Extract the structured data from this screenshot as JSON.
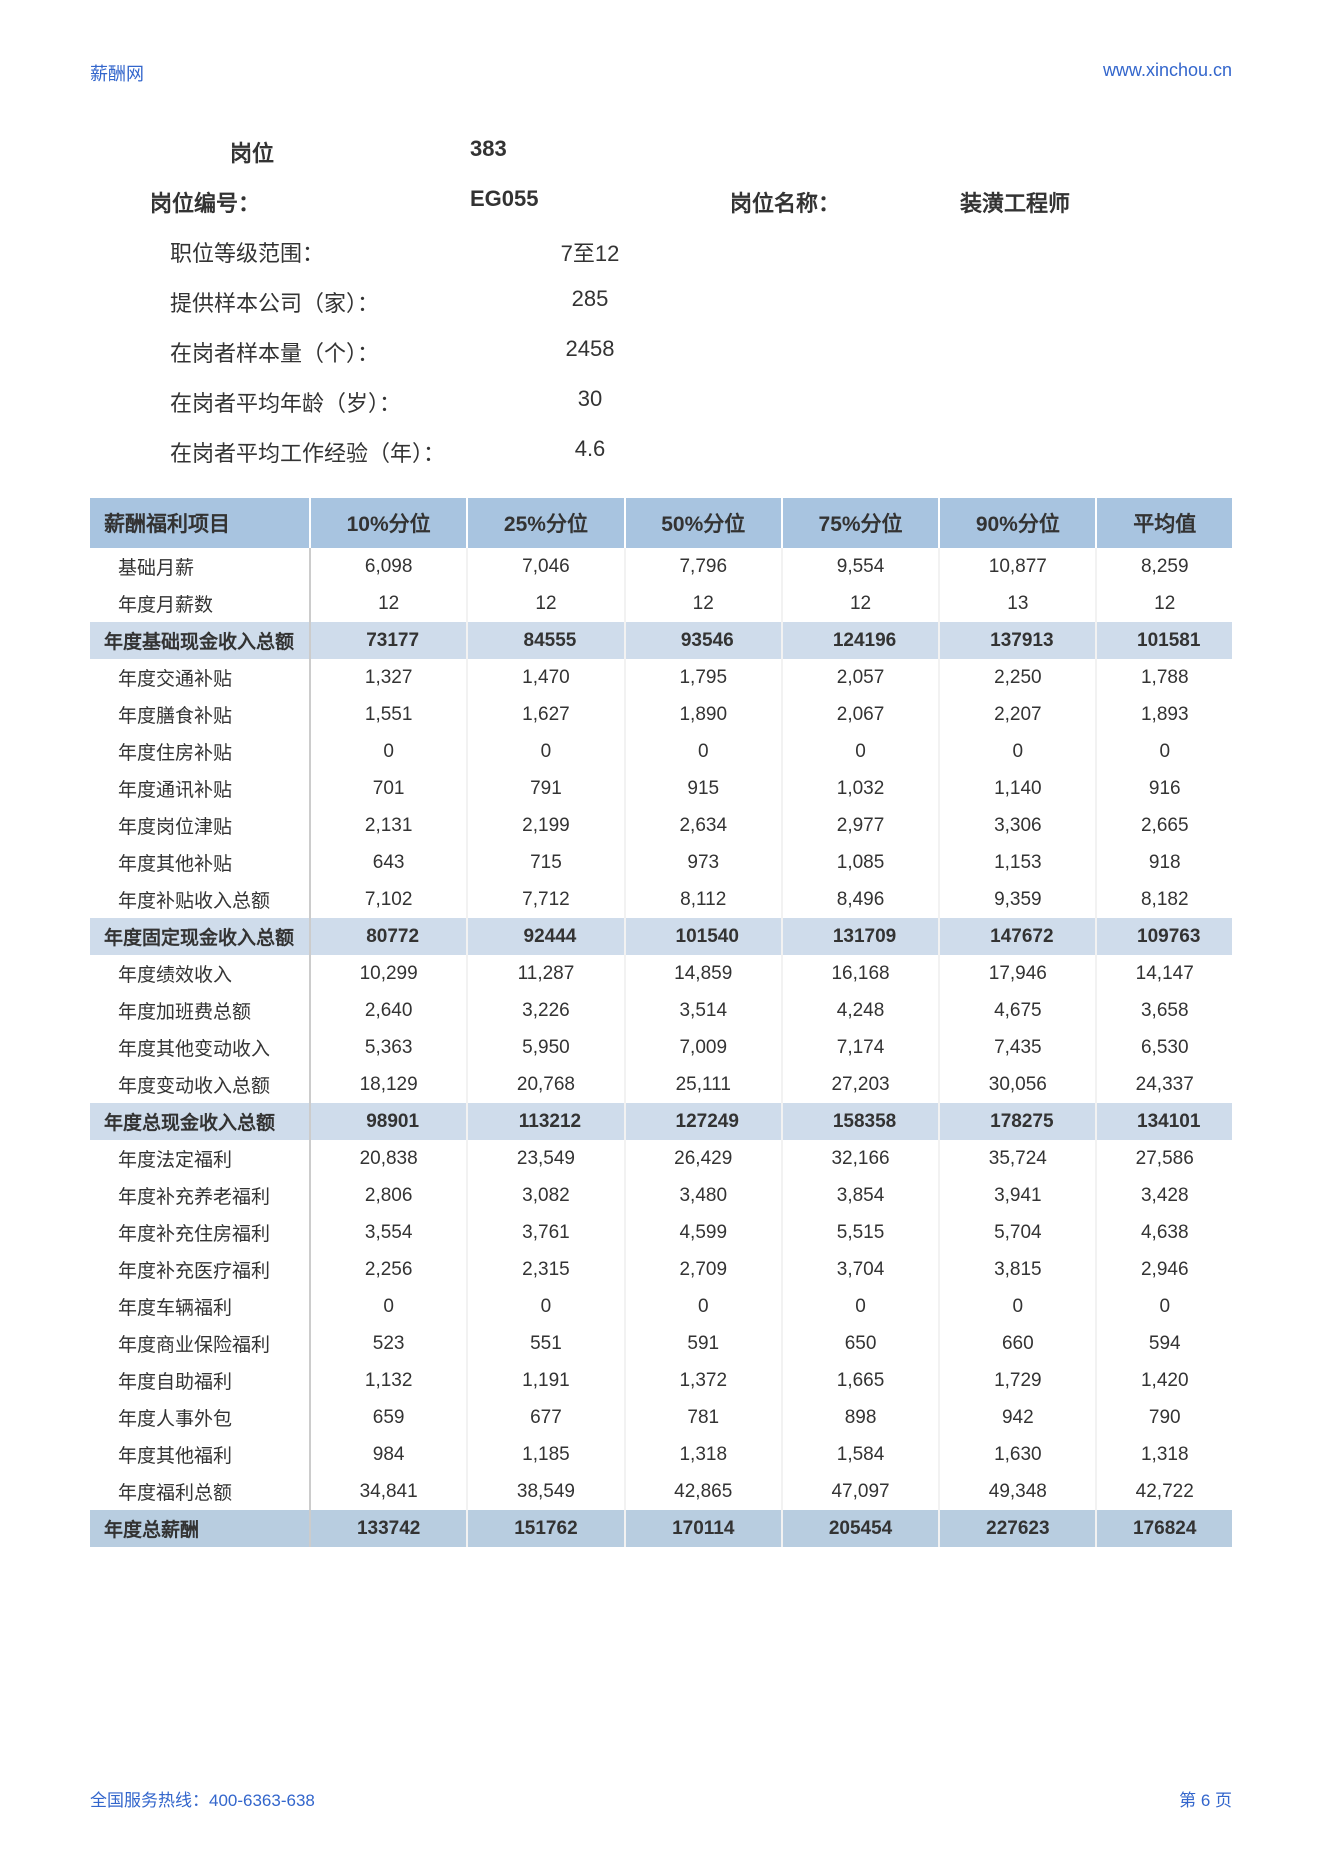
{
  "header": {
    "left": "薪酬网",
    "right": "www.xinchou.cn"
  },
  "meta": {
    "position_label": "岗位",
    "position_value": "383",
    "code_label": "岗位编号：",
    "code_value": "EG055",
    "name_label": "岗位名称：",
    "name_value": "装潢工程师",
    "rows": [
      {
        "label": "职位等级范围：",
        "value": "7至12"
      },
      {
        "label": "提供样本公司（家）：",
        "value": "285"
      },
      {
        "label": "在岗者样本量（个）：",
        "value": "2458"
      },
      {
        "label": "在岗者平均年龄（岁）：",
        "value": "30"
      },
      {
        "label": "在岗者平均工作经验（年）：",
        "value": "4.6"
      }
    ]
  },
  "table": {
    "columns": [
      "薪酬福利项目",
      "10%分位",
      "25%分位",
      "50%分位",
      "75%分位",
      "90%分位",
      "平均值"
    ],
    "col_widths": [
      "220px",
      "auto",
      "auto",
      "auto",
      "auto",
      "auto",
      "auto"
    ],
    "header_bg": "#a8c4e0",
    "subtotal_bg": "#cfdceb",
    "grand_bg": "#b8cde0",
    "rows": [
      {
        "type": "data",
        "cells": [
          "基础月薪",
          "6,098",
          "7,046",
          "7,796",
          "9,554",
          "10,877",
          "8,259"
        ]
      },
      {
        "type": "data",
        "cells": [
          "年度月薪数",
          "12",
          "12",
          "12",
          "12",
          "13",
          "12"
        ]
      },
      {
        "type": "subtotal",
        "cells": [
          "年度基础现金收入总额",
          "73177",
          "84555",
          "93546",
          "124196",
          "137913",
          "101581"
        ]
      },
      {
        "type": "data",
        "cells": [
          "年度交通补贴",
          "1,327",
          "1,470",
          "1,795",
          "2,057",
          "2,250",
          "1,788"
        ]
      },
      {
        "type": "data",
        "cells": [
          "年度膳食补贴",
          "1,551",
          "1,627",
          "1,890",
          "2,067",
          "2,207",
          "1,893"
        ]
      },
      {
        "type": "data",
        "cells": [
          "年度住房补贴",
          "0",
          "0",
          "0",
          "0",
          "0",
          "0"
        ]
      },
      {
        "type": "data",
        "cells": [
          "年度通讯补贴",
          "701",
          "791",
          "915",
          "1,032",
          "1,140",
          "916"
        ]
      },
      {
        "type": "data",
        "cells": [
          "年度岗位津贴",
          "2,131",
          "2,199",
          "2,634",
          "2,977",
          "3,306",
          "2,665"
        ]
      },
      {
        "type": "data",
        "cells": [
          "年度其他补贴",
          "643",
          "715",
          "973",
          "1,085",
          "1,153",
          "918"
        ]
      },
      {
        "type": "data",
        "cells": [
          "年度补贴收入总额",
          "7,102",
          "7,712",
          "8,112",
          "8,496",
          "9,359",
          "8,182"
        ]
      },
      {
        "type": "subtotal",
        "cells": [
          "年度固定现金收入总额",
          "80772",
          "92444",
          "101540",
          "131709",
          "147672",
          "109763"
        ]
      },
      {
        "type": "data",
        "cells": [
          "年度绩效收入",
          "10,299",
          "11,287",
          "14,859",
          "16,168",
          "17,946",
          "14,147"
        ]
      },
      {
        "type": "data",
        "cells": [
          "年度加班费总额",
          "2,640",
          "3,226",
          "3,514",
          "4,248",
          "4,675",
          "3,658"
        ]
      },
      {
        "type": "data",
        "cells": [
          "年度其他变动收入",
          "5,363",
          "5,950",
          "7,009",
          "7,174",
          "7,435",
          "6,530"
        ]
      },
      {
        "type": "data",
        "cells": [
          "年度变动收入总额",
          "18,129",
          "20,768",
          "25,111",
          "27,203",
          "30,056",
          "24,337"
        ]
      },
      {
        "type": "subtotal",
        "cells": [
          "年度总现金收入总额",
          "98901",
          "113212",
          "127249",
          "158358",
          "178275",
          "134101"
        ]
      },
      {
        "type": "data",
        "cells": [
          "年度法定福利",
          "20,838",
          "23,549",
          "26,429",
          "32,166",
          "35,724",
          "27,586"
        ]
      },
      {
        "type": "data",
        "cells": [
          "年度补充养老福利",
          "2,806",
          "3,082",
          "3,480",
          "3,854",
          "3,941",
          "3,428"
        ]
      },
      {
        "type": "data",
        "cells": [
          "年度补充住房福利",
          "3,554",
          "3,761",
          "4,599",
          "5,515",
          "5,704",
          "4,638"
        ]
      },
      {
        "type": "data",
        "cells": [
          "年度补充医疗福利",
          "2,256",
          "2,315",
          "2,709",
          "3,704",
          "3,815",
          "2,946"
        ]
      },
      {
        "type": "data",
        "cells": [
          "年度车辆福利",
          "0",
          "0",
          "0",
          "0",
          "0",
          "0"
        ]
      },
      {
        "type": "data",
        "cells": [
          "年度商业保险福利",
          "523",
          "551",
          "591",
          "650",
          "660",
          "594"
        ]
      },
      {
        "type": "data",
        "cells": [
          "年度自助福利",
          "1,132",
          "1,191",
          "1,372",
          "1,665",
          "1,729",
          "1,420"
        ]
      },
      {
        "type": "data",
        "cells": [
          "年度人事外包",
          "659",
          "677",
          "781",
          "898",
          "942",
          "790"
        ]
      },
      {
        "type": "data",
        "cells": [
          "年度其他福利",
          "984",
          "1,185",
          "1,318",
          "1,584",
          "1,630",
          "1,318"
        ]
      },
      {
        "type": "data",
        "cells": [
          "年度福利总额",
          "34,841",
          "38,549",
          "42,865",
          "47,097",
          "49,348",
          "42,722"
        ]
      },
      {
        "type": "grand",
        "cells": [
          "年度总薪酬",
          "133742",
          "151762",
          "170114",
          "205454",
          "227623",
          "176824"
        ]
      }
    ]
  },
  "footer": {
    "left": "全国服务热线：400-6363-638",
    "right": "第 6 页"
  }
}
